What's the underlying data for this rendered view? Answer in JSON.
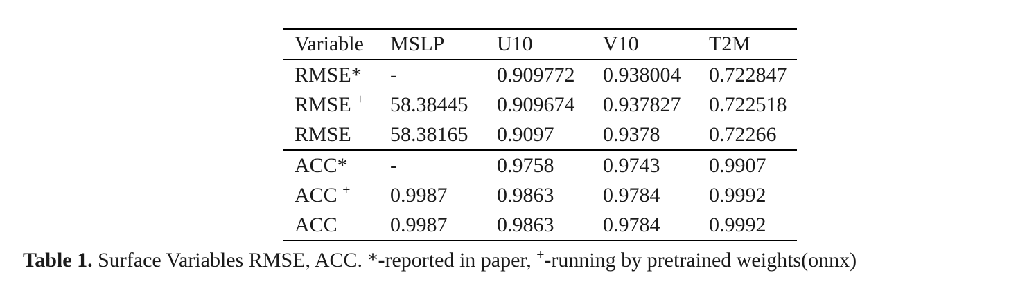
{
  "page": {
    "background": "#ffffff",
    "text_color": "#1a1a1a",
    "rule_color": "#000000"
  },
  "table": {
    "columns": [
      "Variable",
      "MSLP",
      "U10",
      "V10",
      "T2M"
    ],
    "rows": [
      {
        "label": "RMSE*",
        "cells": [
          "-",
          "0.909772",
          "0.938004",
          "0.722847"
        ]
      },
      {
        "label": "RMSE",
        "label_sup": "+",
        "cells": [
          "58.38445",
          "0.909674",
          "0.937827",
          "0.722518"
        ]
      },
      {
        "label": "RMSE",
        "cells": [
          "58.38165",
          "0.9097",
          "0.9378",
          "0.72266"
        ],
        "group_end": true
      },
      {
        "label": "ACC*",
        "cells": [
          "-",
          "0.9758",
          "0.9743",
          "0.9907"
        ]
      },
      {
        "label": "ACC",
        "label_sup": "+",
        "cells": [
          "0.9987",
          "0.9863",
          "0.9784",
          "0.9992"
        ]
      },
      {
        "label": "ACC",
        "cells": [
          "0.9987",
          "0.9863",
          "0.9784",
          "0.9992"
        ]
      }
    ]
  },
  "caption": {
    "parts": [
      {
        "text": "Table 1.",
        "bold": true
      },
      {
        "text": " Surface Variables RMSE, ACC. *-reported in paper, "
      },
      {
        "text": "+",
        "sup": true
      },
      {
        "text": "-running by pretrained weights(onnx)"
      }
    ]
  }
}
